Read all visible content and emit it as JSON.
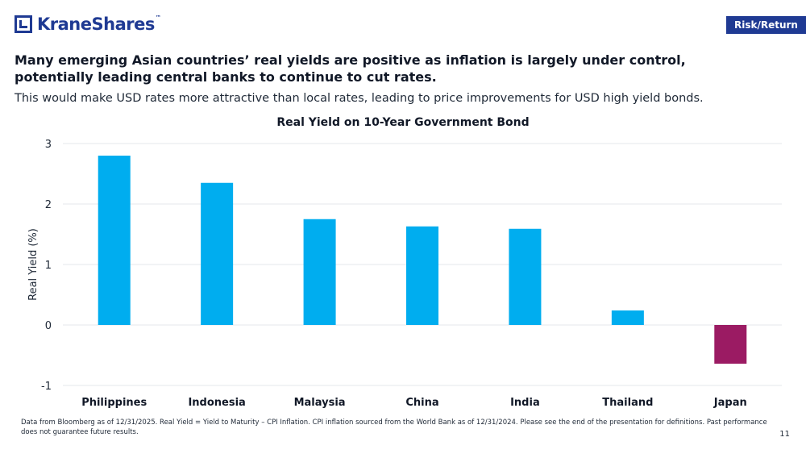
{
  "brand": {
    "name": "KraneShares",
    "tm": "™"
  },
  "tag": "Risk/Return",
  "headline": "Many emerging Asian countries’ real yields are positive as inflation is largely under control, potentially leading central banks to continue to cut rates.",
  "subtext": "This would make USD rates more attractive than local rates, leading to price improvements for USD high yield bonds.",
  "footnote": "Data from Bloomberg as of 12/31/2025. Real Yield = Yield to Maturity – CPI Inflation. CPI inflation sourced from the World Bank as of 12/31/2024. Please see the end of the presentation for definitions. Past performance does not guarantee future results.",
  "page_number": "11",
  "colors": {
    "brand": "#1f3a93",
    "positive": "#00adef",
    "negative": "#9b1b63",
    "grid": "#e5e7eb"
  },
  "chart_data": {
    "type": "bar",
    "title": "Real Yield on 10-Year Government Bond",
    "xlabel": "",
    "ylabel": "Real Yield (%)",
    "categories": [
      "Philippines",
      "Indonesia",
      "Malaysia",
      "China",
      "India",
      "Thailand",
      "Japan"
    ],
    "values": [
      2.8,
      2.35,
      1.75,
      1.63,
      1.59,
      0.24,
      -0.64
    ],
    "ylim": [
      -1,
      3
    ],
    "yticks": [
      "-1",
      "0",
      "1",
      "2",
      "3"
    ],
    "grid": true,
    "legend": "none"
  }
}
